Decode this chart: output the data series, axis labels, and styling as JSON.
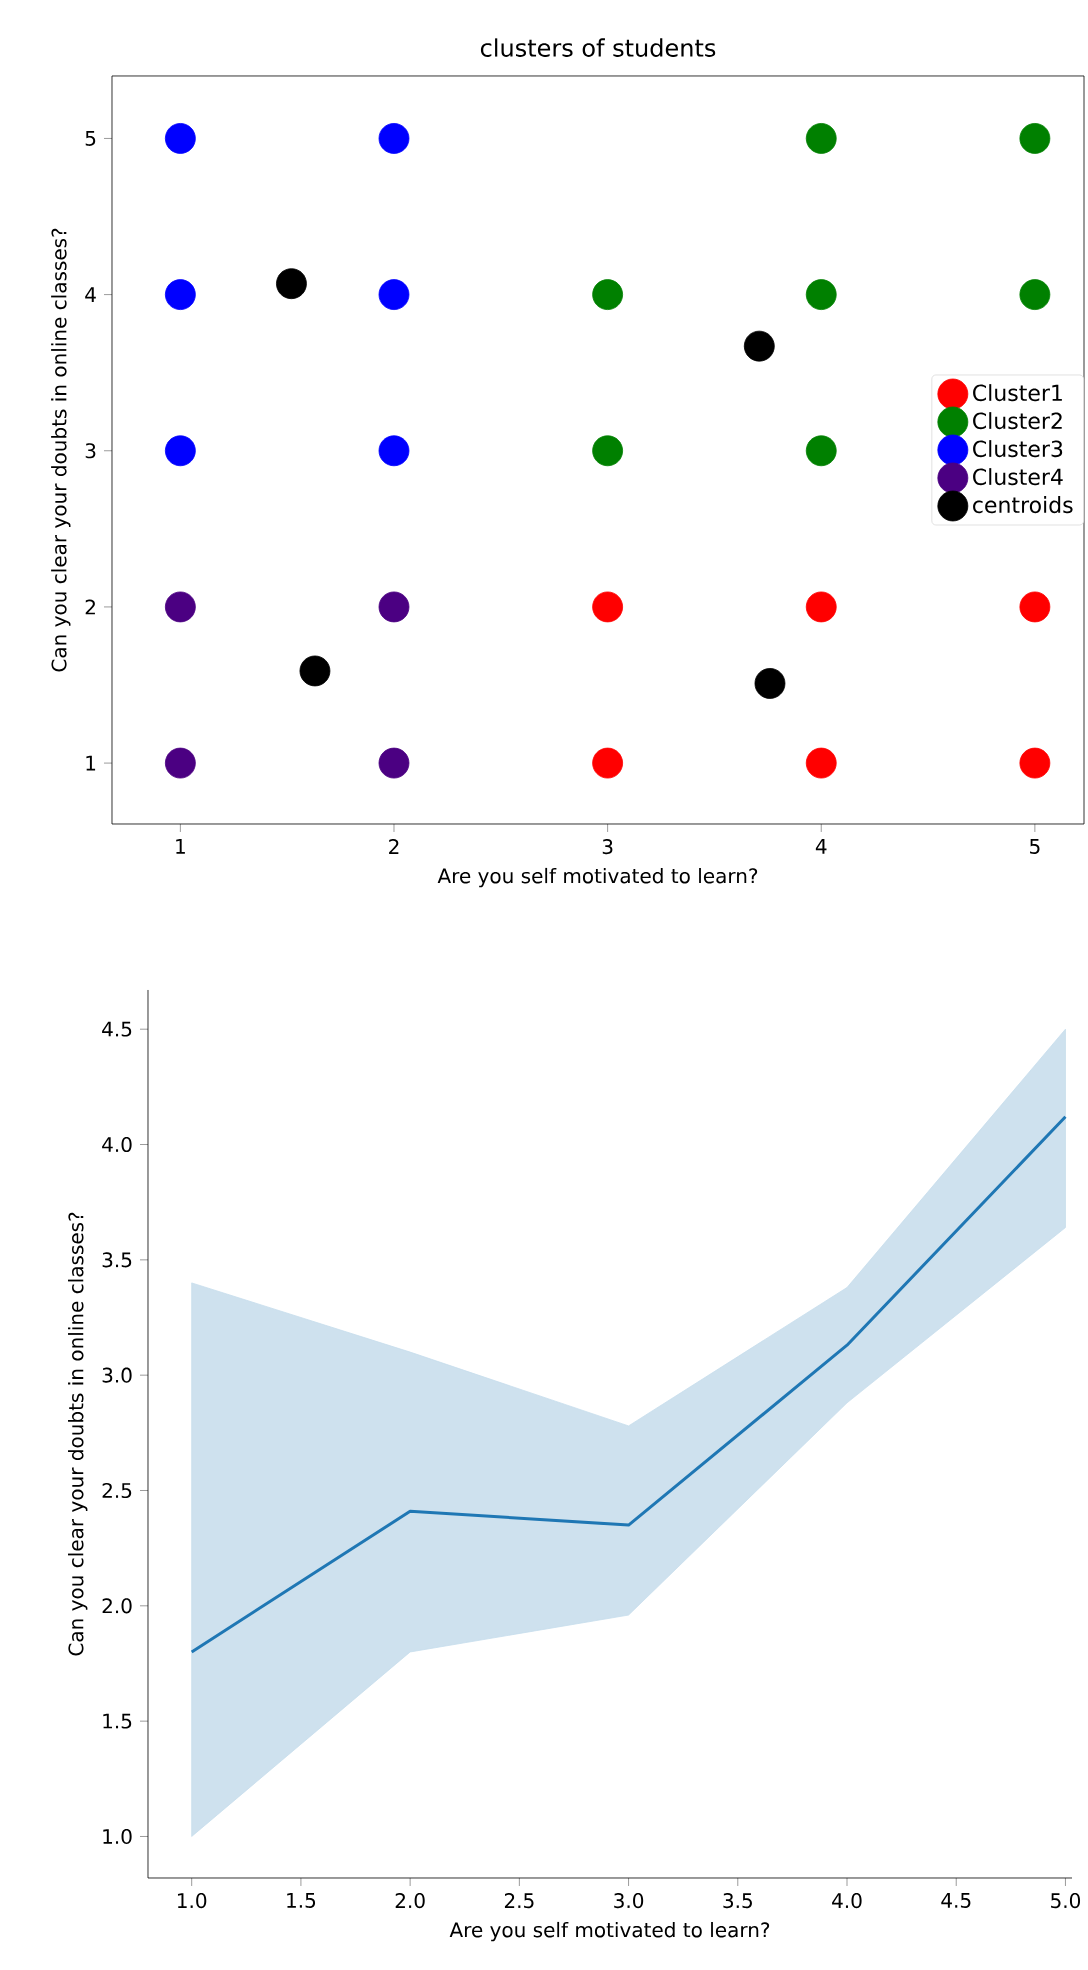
{
  "chart_data": [
    {
      "type": "scatter",
      "title": "clusters of students",
      "xlabel": "Are you self motivated to learn?",
      "ylabel": "Can you clear your doubts in online classes?",
      "xlim": [
        0.68,
        5.23
      ],
      "ylim": [
        0.61,
        5.4
      ],
      "xticks": [
        1,
        2,
        3,
        4,
        5
      ],
      "yticks": [
        1,
        2,
        3,
        4,
        5
      ],
      "legend": "right",
      "marker": "circle",
      "grid": false,
      "series": [
        {
          "name": "Cluster1",
          "color": "#ff0000",
          "x": [
            3,
            4,
            5,
            3,
            4,
            5
          ],
          "values": [
            2,
            2,
            2,
            1,
            1,
            1
          ]
        },
        {
          "name": "Cluster2",
          "color": "#008000",
          "x": [
            4,
            5,
            3,
            4,
            5,
            3,
            4
          ],
          "values": [
            5,
            5,
            4,
            4,
            4,
            3,
            3
          ]
        },
        {
          "name": "Cluster3",
          "color": "#0000ff",
          "x": [
            1,
            2,
            1,
            2,
            1,
            2
          ],
          "values": [
            5,
            5,
            4,
            4,
            3,
            3
          ]
        },
        {
          "name": "Cluster4",
          "color": "#4b0082",
          "x": [
            1,
            2,
            1,
            2
          ],
          "values": [
            2,
            2,
            1,
            1
          ]
        },
        {
          "name": "centroids",
          "color": "#000000",
          "x": [
            1.52,
            3.71,
            1.63,
            3.76
          ],
          "values": [
            4.07,
            3.67,
            1.59,
            1.51
          ]
        }
      ]
    },
    {
      "type": "line",
      "xlabel": "Are you self motivated to learn?",
      "ylabel": "Can you clear your doubts in online classes?",
      "xlim": [
        0.8,
        5.03
      ],
      "ylim": [
        0.82,
        4.67
      ],
      "marker": "none",
      "line_style": "solid",
      "grid": false,
      "legend": false,
      "xticks": [
        {
          "value": 1.0,
          "label": "1.0"
        },
        {
          "value": 1.5,
          "label": "1.5"
        },
        {
          "value": 2.0,
          "label": "2.0"
        },
        {
          "value": 2.5,
          "label": "2.5"
        },
        {
          "value": 3.0,
          "label": "3.0"
        },
        {
          "value": 3.5,
          "label": "3.5"
        },
        {
          "value": 4.0,
          "label": "4.0"
        },
        {
          "value": 4.5,
          "label": "4.5"
        },
        {
          "value": 5.0,
          "label": "5.0"
        }
      ],
      "yticks": [
        {
          "value": 1.0,
          "label": "1.0"
        },
        {
          "value": 1.5,
          "label": "1.5"
        },
        {
          "value": 2.0,
          "label": "2.0"
        },
        {
          "value": 2.5,
          "label": "2.5"
        },
        {
          "value": 3.0,
          "label": "3.0"
        },
        {
          "value": 3.5,
          "label": "3.5"
        },
        {
          "value": 4.0,
          "label": "4.0"
        },
        {
          "value": 4.5,
          "label": "4.5"
        }
      ],
      "series": [
        {
          "color": "#1f77b4",
          "x": [
            1,
            2,
            3,
            4,
            5
          ],
          "values": [
            1.8,
            2.41,
            2.35,
            3.13,
            4.12
          ],
          "lower": [
            1.0,
            1.8,
            1.96,
            2.88,
            3.64
          ],
          "upper": [
            3.4,
            3.1,
            2.78,
            3.38,
            4.5
          ]
        }
      ]
    }
  ]
}
